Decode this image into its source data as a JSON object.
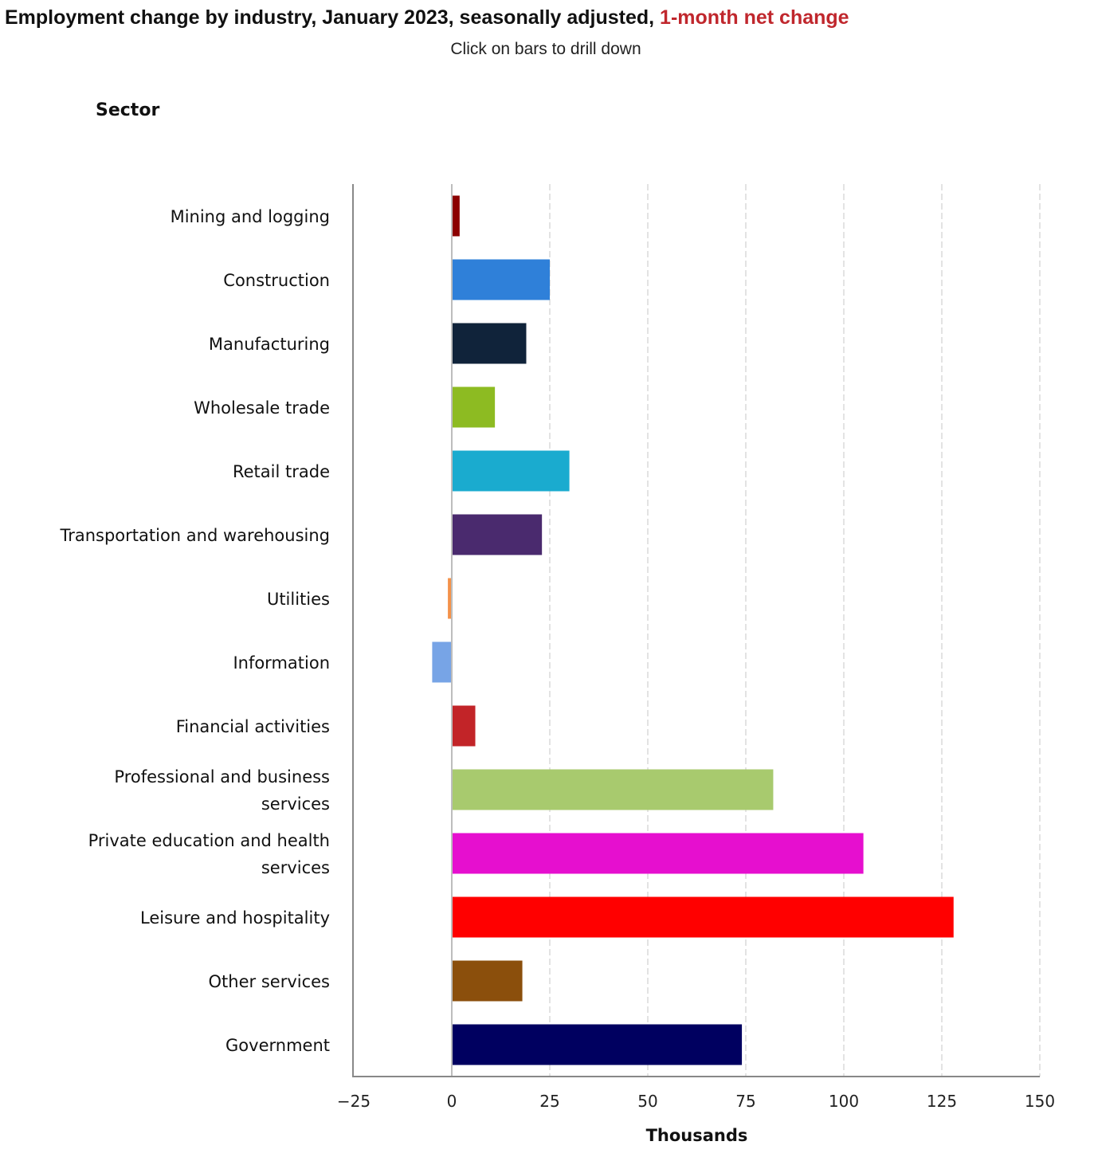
{
  "header": {
    "title_main": "Employment change by industry, January 2023, seasonally adjusted, ",
    "title_accent": "1-month net change",
    "subtitle": "Click on bars to drill down"
  },
  "colors": {
    "accent": "#c0272d",
    "grid": "#d4d4d4",
    "axis": "#888888"
  },
  "chart_data": {
    "type": "bar",
    "orientation": "horizontal",
    "title": "Employment change by industry, January 2023, seasonally adjusted, 1-month net change",
    "subtitle": "Click on bars to drill down",
    "ylabel": "Sector",
    "xlabel": "Thousands",
    "xlim": [
      -25,
      150
    ],
    "xticks": [
      -25,
      0,
      25,
      50,
      75,
      100,
      125,
      150
    ],
    "xtick_labels": [
      "−25",
      "0",
      "25",
      "50",
      "75",
      "100",
      "125",
      "150"
    ],
    "grid": true,
    "categories": [
      "Mining and logging",
      "Construction",
      "Manufacturing",
      "Wholesale trade",
      "Retail trade",
      "Transportation and warehousing",
      "Utilities",
      "Information",
      "Financial activities",
      "Professional and business services",
      "Private education and health services",
      "Leisure and hospitality",
      "Other services",
      "Government"
    ],
    "values": [
      2,
      25,
      19,
      11,
      30,
      23,
      -1,
      -5,
      6,
      82,
      105,
      128,
      18,
      74
    ],
    "bar_colors": [
      "#8b0000",
      "#2f80d9",
      "#10233a",
      "#8dbb22",
      "#1aabcf",
      "#4a2a6e",
      "#f4924a",
      "#77a4e6",
      "#c22428",
      "#a8ca6e",
      "#e60fcf",
      "#ff0000",
      "#8b4f0c",
      "#000060"
    ]
  }
}
